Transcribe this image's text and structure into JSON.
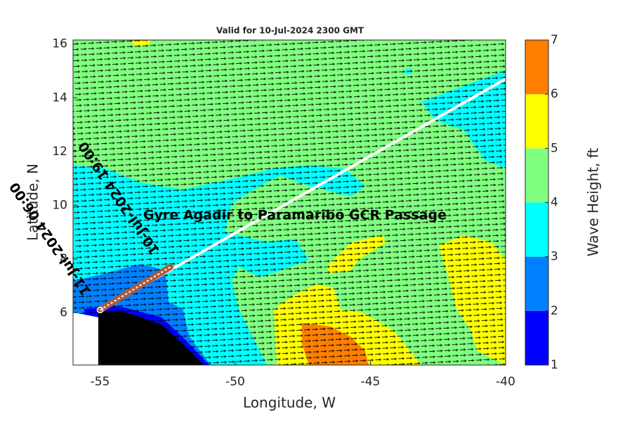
{
  "chart_data": {
    "type": "contour-map",
    "title": "Valid for 10-Jul-2024 2300 GMT",
    "xlabel": "Longitude, W",
    "ylabel": "Latitude, N",
    "xlim": [
      -56,
      -40
    ],
    "ylim": [
      4.05,
      16.15
    ],
    "xticks": [
      -55,
      -50,
      -45,
      -40
    ],
    "yticks": [
      6,
      8,
      10,
      12,
      14,
      16
    ],
    "colorbar": {
      "label": "Wave Height, ft",
      "lim": [
        1,
        7
      ],
      "ticks": [
        1,
        2,
        3,
        4,
        5,
        6,
        7
      ],
      "colors": [
        "#0000ff",
        "#0080ff",
        "#00ffff",
        "#80ff80",
        "#ffff00",
        "#ff8000"
      ]
    },
    "route": {
      "name": "Gyre Agadir to Paramaribo GCR Passage",
      "color": "#ffffff",
      "x": [
        -55,
        -40
      ],
      "y": [
        6.1,
        14.7
      ]
    },
    "segment": {
      "color": "#b05a3a",
      "x": [
        -55,
        -52.4
      ],
      "y": [
        6.1,
        7.7
      ]
    },
    "annotations": [
      "10-Jul-2024 19:00",
      "11-Jul-2024 06:00"
    ]
  }
}
